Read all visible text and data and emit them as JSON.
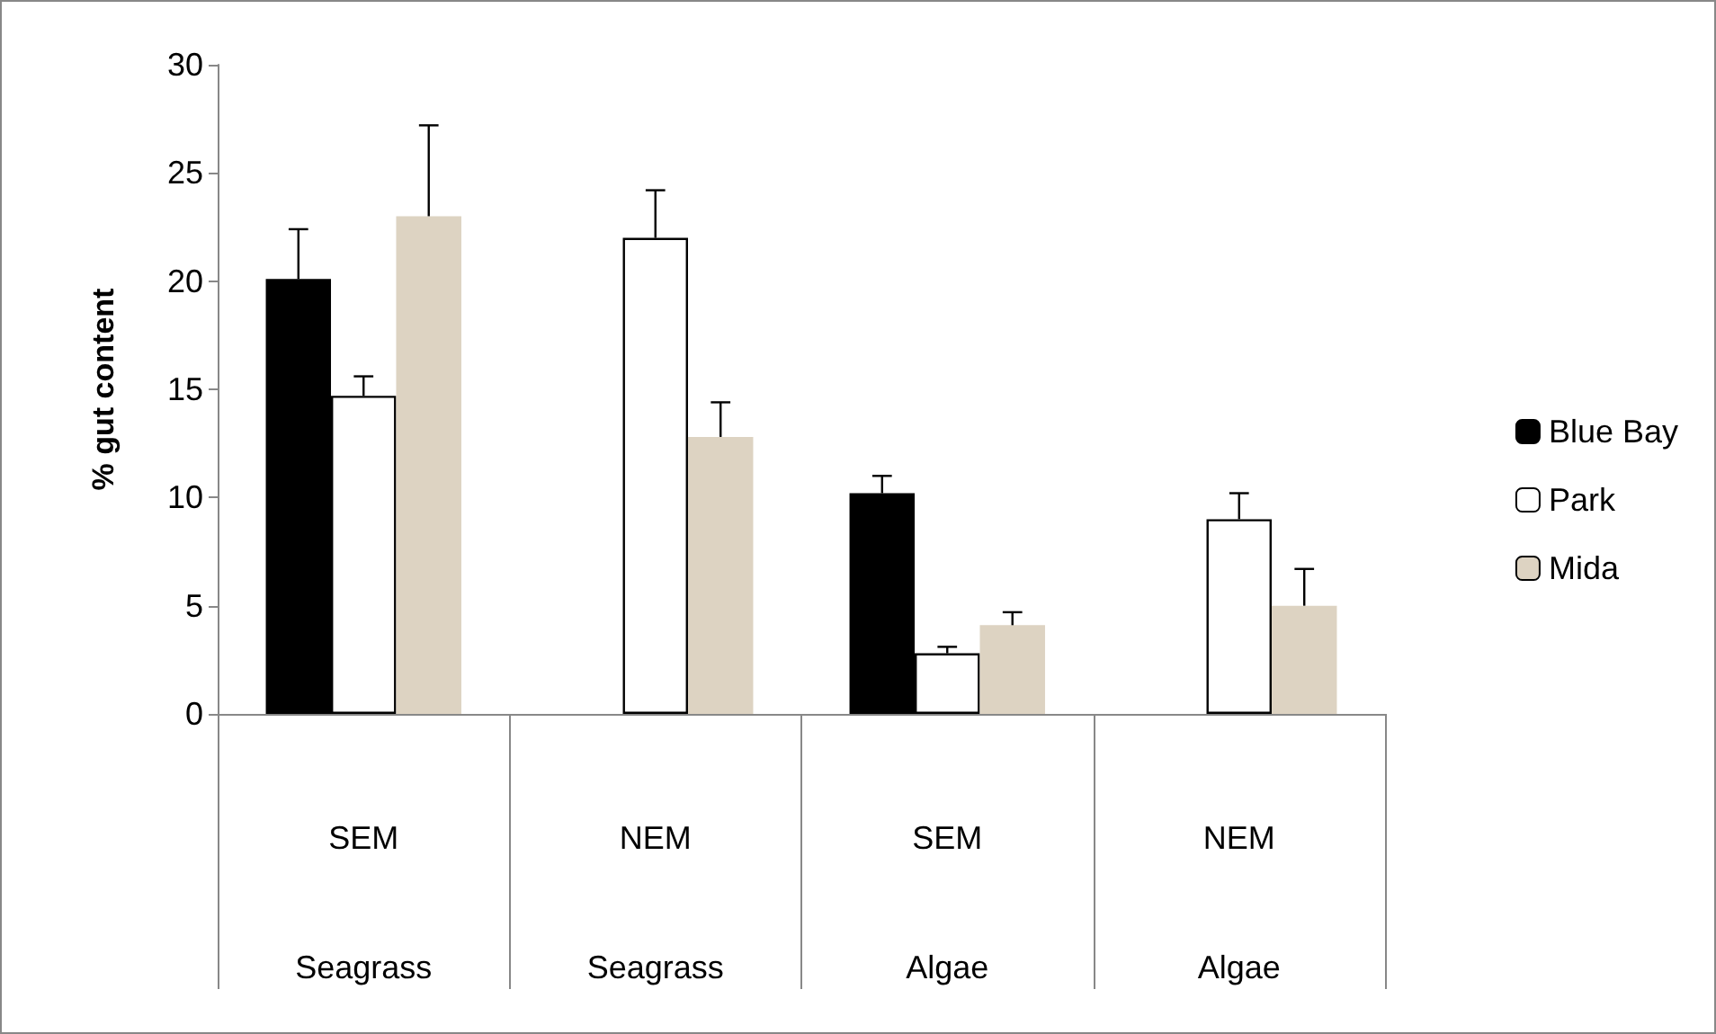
{
  "chart_data": {
    "type": "bar",
    "ylabel": "% gut content",
    "categories": [
      "SEM\nSeagrass",
      "NEM\nSeagrass",
      "SEM\nAlgae",
      "NEM\nAlgae"
    ],
    "series": [
      {
        "name": "Blue Bay",
        "color": "#000000",
        "values": [
          20.1,
          null,
          10.2,
          null
        ],
        "errors": [
          [
            20.1,
            22.4
          ],
          null,
          [
            10.2,
            11.0
          ],
          null
        ]
      },
      {
        "name": "Park",
        "color": "#ffffff",
        "values": [
          14.7,
          22.0,
          2.8,
          9.0
        ],
        "errors": [
          [
            14.7,
            15.6
          ],
          [
            22.0,
            24.2
          ],
          [
            2.8,
            3.1
          ],
          [
            9.0,
            10.2
          ]
        ]
      },
      {
        "name": "Mida",
        "color": "#ddd3c2",
        "values": [
          23.0,
          12.8,
          4.1,
          5.0
        ],
        "errors": [
          [
            23.0,
            27.2
          ],
          [
            12.8,
            14.4
          ],
          [
            4.1,
            4.7
          ],
          [
            5.0,
            6.7
          ]
        ]
      }
    ],
    "ylim": [
      0,
      30
    ],
    "yticks": [
      0,
      5,
      10,
      15,
      20,
      25,
      30
    ],
    "grid": false,
    "legend": "right"
  }
}
